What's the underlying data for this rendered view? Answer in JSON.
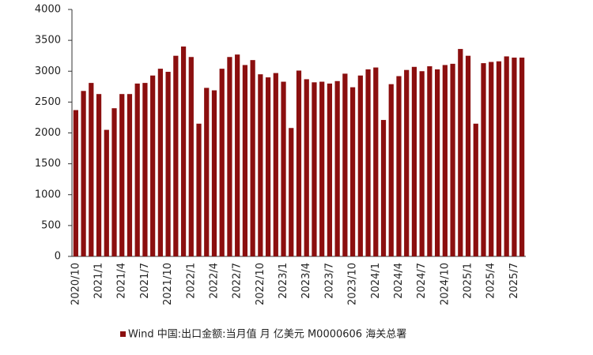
{
  "chart_data": {
    "type": "bar",
    "categories": [
      "2020/10",
      null,
      null,
      "2021/1",
      null,
      null,
      "2021/4",
      null,
      null,
      "2021/7",
      null,
      null,
      "2021/10",
      null,
      null,
      "2022/1",
      null,
      null,
      "2022/4",
      null,
      null,
      "2022/7",
      null,
      null,
      "2022/10",
      null,
      null,
      "2023/1",
      null,
      null,
      "2023/4",
      null,
      null,
      "2023/7",
      null,
      null,
      "2023/10",
      null,
      null,
      "2024/1",
      null,
      null,
      "2024/4",
      null,
      null,
      "2024/7",
      null,
      null,
      "2024/10",
      null,
      null,
      "2025/1",
      null,
      null,
      "2025/4",
      null,
      null,
      "2025/7",
      null
    ],
    "series": [
      {
        "name": "Wind 中国:出口金额:当月值 月 亿美元 M0000606 海关总署",
        "color": "#8b0f0f",
        "values": [
          2370,
          2680,
          2810,
          2630,
          2050,
          2400,
          2630,
          2630,
          2800,
          2810,
          2930,
          3040,
          2990,
          3250,
          3400,
          3230,
          2150,
          2730,
          2690,
          3040,
          3230,
          3270,
          3100,
          3180,
          2950,
          2900,
          2970,
          2830,
          2080,
          3010,
          2870,
          2820,
          2830,
          2800,
          2840,
          2960,
          2740,
          2930,
          3030,
          3060,
          2210,
          2790,
          2920,
          3020,
          3070,
          3000,
          3080,
          3030,
          3100,
          3120,
          3360,
          3250,
          2150,
          3130,
          3150,
          3160,
          3240,
          3220,
          3220
        ]
      }
    ],
    "ylim": [
      0,
      4000
    ],
    "yticks": [
      0,
      500,
      1000,
      1500,
      2000,
      2500,
      3000,
      3500,
      4000
    ],
    "grid": false,
    "legend": "bottom"
  }
}
